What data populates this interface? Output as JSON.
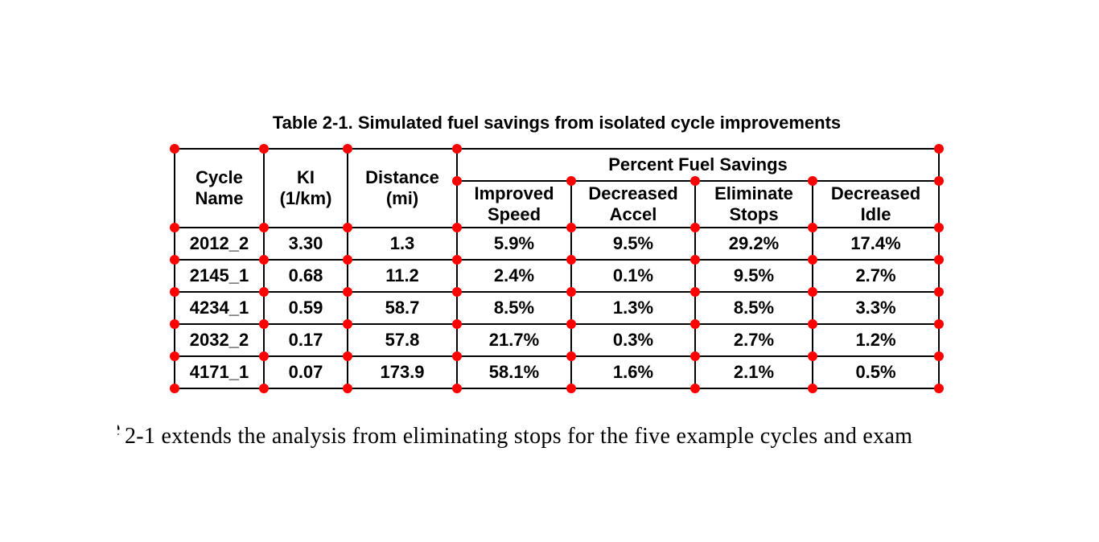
{
  "page": {
    "background": "#ffffff"
  },
  "caption": "Table 2-1. Simulated fuel savings from isolated cycle improvements",
  "table": {
    "group_header": "Percent Fuel Savings",
    "columns": [
      "Cycle\nName",
      "KI\n(1/km)",
      "Distance\n(mi)"
    ],
    "sub_columns": [
      "Improved\nSpeed",
      "Decreased\nAccel",
      "Eliminate\nStops",
      "Decreased\nIdle"
    ],
    "rows": [
      [
        "2012_2",
        "3.30",
        "1.3",
        "5.9%",
        "9.5%",
        "29.2%",
        "17.4%"
      ],
      [
        "2145_1",
        "0.68",
        "11.2",
        "2.4%",
        "0.1%",
        "9.5%",
        "2.7%"
      ],
      [
        "4234_1",
        "0.59",
        "58.7",
        "8.5%",
        "1.3%",
        "8.5%",
        "3.3%"
      ],
      [
        "2032_2",
        "0.17",
        "57.8",
        "21.7%",
        "0.3%",
        "2.7%",
        "1.2%"
      ],
      [
        "4171_1",
        "0.07",
        "173.9",
        "58.1%",
        "1.6%",
        "2.1%",
        "0.5%"
      ]
    ]
  },
  "annotation": {
    "marker_shape": "circle",
    "marker_color": "#ff0000"
  },
  "body_text": {
    "fragment": "e",
    "line": "2-1 extends the analysis from eliminating stops for the five example cycles and exam"
  },
  "colors": {
    "text": "#000000",
    "table_border": "#000000",
    "background": "#ffffff"
  }
}
